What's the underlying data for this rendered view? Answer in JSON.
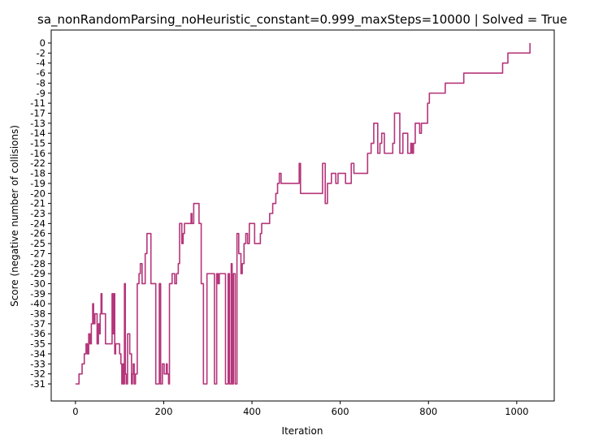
{
  "chart_data": {
    "type": "line",
    "title": "sa_nonRandomParsing_noHeuristic_constant=0.999_maxSteps=10000 | Solved = True",
    "xlabel": "Iteration",
    "ylabel": "Score (negative number of collisions)",
    "xlim": [
      -55,
      1085
    ],
    "x_ticks": [
      0,
      200,
      400,
      600,
      800,
      1000
    ],
    "grid": false,
    "line_color": "#b5357a",
    "y_categories": [
      "-31",
      "-32",
      "-33",
      "-34",
      "-35",
      "-36",
      "-37",
      "-38",
      "-40",
      "-39",
      "-30",
      "-29",
      "-28",
      "-27",
      "-25",
      "-26",
      "-24",
      "-23",
      "-21",
      "-20",
      "-19",
      "-18",
      "-22",
      "-16",
      "-15",
      "-14",
      "-13",
      "-17",
      "-11",
      "-9",
      "-8",
      "-6",
      "-4",
      "-2",
      "0"
    ],
    "series": [
      {
        "points": [
          [
            0,
            "-31"
          ],
          [
            8,
            "-31"
          ],
          [
            8,
            "-32"
          ],
          [
            15,
            "-32"
          ],
          [
            15,
            "-33"
          ],
          [
            20,
            "-33"
          ],
          [
            20,
            "-34"
          ],
          [
            24,
            "-34"
          ],
          [
            24,
            "-35"
          ],
          [
            27,
            "-35"
          ],
          [
            27,
            "-34"
          ],
          [
            30,
            "-34"
          ],
          [
            30,
            "-36"
          ],
          [
            33,
            "-36"
          ],
          [
            33,
            "-35"
          ],
          [
            36,
            "-35"
          ],
          [
            36,
            "-37"
          ],
          [
            39,
            "-37"
          ],
          [
            39,
            "-40"
          ],
          [
            41,
            "-40"
          ],
          [
            41,
            "-37"
          ],
          [
            44,
            "-37"
          ],
          [
            44,
            "-38"
          ],
          [
            49,
            "-38"
          ],
          [
            49,
            "-35"
          ],
          [
            52,
            "-35"
          ],
          [
            52,
            "-37"
          ],
          [
            54,
            "-37"
          ],
          [
            54,
            "-36"
          ],
          [
            56,
            "-36"
          ],
          [
            56,
            "-38"
          ],
          [
            58,
            "-38"
          ],
          [
            58,
            "-39"
          ],
          [
            60,
            "-39"
          ],
          [
            60,
            "-38"
          ],
          [
            68,
            "-38"
          ],
          [
            68,
            "-35"
          ],
          [
            83,
            "-35"
          ],
          [
            83,
            "-39"
          ],
          [
            85,
            "-39"
          ],
          [
            85,
            "-36"
          ],
          [
            87,
            "-36"
          ],
          [
            87,
            "-39"
          ],
          [
            89,
            "-39"
          ],
          [
            89,
            "-34"
          ],
          [
            91,
            "-34"
          ],
          [
            91,
            "-35"
          ],
          [
            100,
            "-35"
          ],
          [
            100,
            "-34"
          ],
          [
            103,
            "-34"
          ],
          [
            103,
            "-33"
          ],
          [
            105,
            "-33"
          ],
          [
            105,
            "-31"
          ],
          [
            107,
            "-31"
          ],
          [
            107,
            "-33"
          ],
          [
            109,
            "-33"
          ],
          [
            109,
            "-31"
          ],
          [
            111,
            "-31"
          ],
          [
            111,
            "-30"
          ],
          [
            113,
            "-30"
          ],
          [
            113,
            "-32"
          ],
          [
            115,
            "-32"
          ],
          [
            115,
            "-31"
          ],
          [
            118,
            "-31"
          ],
          [
            118,
            "-36"
          ],
          [
            123,
            "-36"
          ],
          [
            123,
            "-34"
          ],
          [
            127,
            "-34"
          ],
          [
            127,
            "-31"
          ],
          [
            129,
            "-31"
          ],
          [
            129,
            "-32"
          ],
          [
            131,
            "-32"
          ],
          [
            131,
            "-33"
          ],
          [
            133,
            "-33"
          ],
          [
            133,
            "-31"
          ],
          [
            136,
            "-31"
          ],
          [
            136,
            "-32"
          ],
          [
            140,
            "-32"
          ],
          [
            140,
            "-30"
          ],
          [
            144,
            "-30"
          ],
          [
            144,
            "-29"
          ],
          [
            147,
            "-29"
          ],
          [
            147,
            "-28"
          ],
          [
            151,
            "-28"
          ],
          [
            151,
            "-30"
          ],
          [
            158,
            "-30"
          ],
          [
            158,
            "-27"
          ],
          [
            162,
            "-27"
          ],
          [
            162,
            "-26"
          ],
          [
            171,
            "-26"
          ],
          [
            171,
            "-30"
          ],
          [
            182,
            "-30"
          ],
          [
            182,
            "-31"
          ],
          [
            190,
            "-31"
          ],
          [
            190,
            "-30"
          ],
          [
            193,
            "-30"
          ],
          [
            193,
            "-31"
          ],
          [
            197,
            "-31"
          ],
          [
            197,
            "-33"
          ],
          [
            201,
            "-33"
          ],
          [
            201,
            "-32"
          ],
          [
            206,
            "-32"
          ],
          [
            206,
            "-33"
          ],
          [
            208,
            "-33"
          ],
          [
            208,
            "-32"
          ],
          [
            211,
            "-32"
          ],
          [
            211,
            "-31"
          ],
          [
            213,
            "-31"
          ],
          [
            213,
            "-30"
          ],
          [
            219,
            "-30"
          ],
          [
            219,
            "-29"
          ],
          [
            225,
            "-29"
          ],
          [
            225,
            "-30"
          ],
          [
            229,
            "-30"
          ],
          [
            229,
            "-29"
          ],
          [
            233,
            "-29"
          ],
          [
            233,
            "-28"
          ],
          [
            236,
            "-28"
          ],
          [
            236,
            "-24"
          ],
          [
            241,
            "-24"
          ],
          [
            241,
            "-25"
          ],
          [
            244,
            "-25"
          ],
          [
            244,
            "-26"
          ],
          [
            247,
            "-26"
          ],
          [
            247,
            "-24"
          ],
          [
            262,
            "-24"
          ],
          [
            262,
            "-23"
          ],
          [
            264,
            "-23"
          ],
          [
            264,
            "-24"
          ],
          [
            268,
            "-24"
          ],
          [
            268,
            "-21"
          ],
          [
            280,
            "-21"
          ],
          [
            280,
            "-24"
          ],
          [
            285,
            "-24"
          ],
          [
            285,
            "-30"
          ],
          [
            290,
            "-30"
          ],
          [
            290,
            "-31"
          ],
          [
            293,
            "-31"
          ],
          [
            293,
            "-31"
          ],
          [
            298,
            "-31"
          ],
          [
            298,
            "-29"
          ],
          [
            315,
            "-29"
          ],
          [
            315,
            "-31"
          ],
          [
            320,
            "-31"
          ],
          [
            320,
            "-29"
          ],
          [
            323,
            "-29"
          ],
          [
            323,
            "-30"
          ],
          [
            326,
            "-30"
          ],
          [
            326,
            "-29"
          ],
          [
            340,
            "-29"
          ],
          [
            340,
            "-31"
          ],
          [
            346,
            "-31"
          ],
          [
            346,
            "-29"
          ],
          [
            349,
            "-29"
          ],
          [
            349,
            "-31"
          ],
          [
            353,
            "-31"
          ],
          [
            353,
            "-28"
          ],
          [
            355,
            "-28"
          ],
          [
            355,
            "-31"
          ],
          [
            358,
            "-31"
          ],
          [
            358,
            "-29"
          ],
          [
            362,
            "-29"
          ],
          [
            362,
            "-31"
          ],
          [
            366,
            "-31"
          ],
          [
            366,
            "-26"
          ],
          [
            370,
            "-26"
          ],
          [
            370,
            "-27"
          ],
          [
            375,
            "-27"
          ],
          [
            375,
            "-29"
          ],
          [
            378,
            "-29"
          ],
          [
            378,
            "-28"
          ],
          [
            382,
            "-28"
          ],
          [
            382,
            "-25"
          ],
          [
            386,
            "-25"
          ],
          [
            386,
            "-26"
          ],
          [
            390,
            "-26"
          ],
          [
            390,
            "-25"
          ],
          [
            394,
            "-25"
          ],
          [
            394,
            "-24"
          ],
          [
            406,
            "-24"
          ],
          [
            406,
            "-25"
          ],
          [
            419,
            "-25"
          ],
          [
            419,
            "-26"
          ],
          [
            422,
            "-26"
          ],
          [
            422,
            "-24"
          ],
          [
            440,
            "-24"
          ],
          [
            440,
            "-23"
          ],
          [
            447,
            "-23"
          ],
          [
            447,
            "-21"
          ],
          [
            454,
            "-21"
          ],
          [
            454,
            "-20"
          ],
          [
            458,
            "-20"
          ],
          [
            458,
            "-19"
          ],
          [
            462,
            "-19"
          ],
          [
            462,
            "-18"
          ],
          [
            466,
            "-18"
          ],
          [
            466,
            "-19"
          ],
          [
            507,
            "-19"
          ],
          [
            507,
            "-22"
          ],
          [
            510,
            "-22"
          ],
          [
            510,
            "-20"
          ],
          [
            560,
            "-20"
          ],
          [
            560,
            "-22"
          ],
          [
            566,
            "-22"
          ],
          [
            566,
            "-21"
          ],
          [
            571,
            "-21"
          ],
          [
            571,
            "-19"
          ],
          [
            580,
            "-19"
          ],
          [
            580,
            "-18"
          ],
          [
            590,
            "-18"
          ],
          [
            590,
            "-19"
          ],
          [
            595,
            "-19"
          ],
          [
            595,
            "-18"
          ],
          [
            612,
            "-18"
          ],
          [
            612,
            "-19"
          ],
          [
            625,
            "-19"
          ],
          [
            625,
            "-22"
          ],
          [
            631,
            "-22"
          ],
          [
            631,
            "-18"
          ],
          [
            662,
            "-18"
          ],
          [
            662,
            "-16"
          ],
          [
            670,
            "-16"
          ],
          [
            670,
            "-15"
          ],
          [
            676,
            "-15"
          ],
          [
            676,
            "-13"
          ],
          [
            685,
            "-13"
          ],
          [
            685,
            "-16"
          ],
          [
            690,
            "-16"
          ],
          [
            690,
            "-15"
          ],
          [
            694,
            "-15"
          ],
          [
            694,
            "-14"
          ],
          [
            700,
            "-14"
          ],
          [
            700,
            "-16"
          ],
          [
            719,
            "-16"
          ],
          [
            719,
            "-15"
          ],
          [
            723,
            "-15"
          ],
          [
            723,
            "-17"
          ],
          [
            735,
            "-17"
          ],
          [
            735,
            "-16"
          ],
          [
            742,
            "-16"
          ],
          [
            742,
            "-14"
          ],
          [
            753,
            "-14"
          ],
          [
            753,
            "-16"
          ],
          [
            760,
            "-16"
          ],
          [
            760,
            "-15"
          ],
          [
            763,
            "-15"
          ],
          [
            763,
            "-16"
          ],
          [
            766,
            "-16"
          ],
          [
            766,
            "-15"
          ],
          [
            770,
            "-15"
          ],
          [
            770,
            "-13"
          ],
          [
            780,
            "-13"
          ],
          [
            780,
            "-14"
          ],
          [
            784,
            "-14"
          ],
          [
            784,
            "-13"
          ],
          [
            798,
            "-13"
          ],
          [
            798,
            "-11"
          ],
          [
            802,
            "-11"
          ],
          [
            802,
            "-9"
          ],
          [
            838,
            "-9"
          ],
          [
            838,
            "-8"
          ],
          [
            880,
            "-8"
          ],
          [
            880,
            "-6"
          ],
          [
            968,
            "-6"
          ],
          [
            968,
            "-4"
          ],
          [
            980,
            "-4"
          ],
          [
            980,
            "-2"
          ],
          [
            1030,
            "-2"
          ],
          [
            1030,
            "0"
          ]
        ]
      }
    ]
  }
}
